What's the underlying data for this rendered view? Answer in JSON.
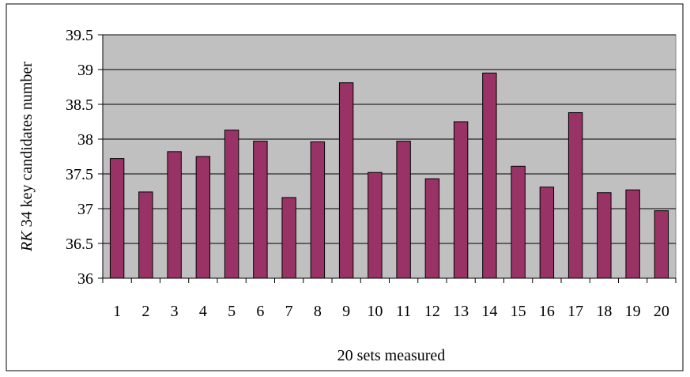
{
  "chart_data": {
    "type": "bar",
    "categories": [
      "1",
      "2",
      "3",
      "4",
      "5",
      "6",
      "7",
      "8",
      "9",
      "10",
      "11",
      "12",
      "13",
      "14",
      "15",
      "16",
      "17",
      "18",
      "19",
      "20"
    ],
    "values": [
      37.72,
      37.24,
      37.82,
      37.75,
      38.13,
      37.97,
      37.16,
      37.96,
      38.81,
      37.52,
      37.97,
      37.43,
      38.25,
      38.95,
      37.61,
      37.31,
      38.38,
      37.23,
      37.27,
      36.97
    ],
    "xlabel": "20 sets measured",
    "ylabel_prefix": "RK",
    "ylabel_rest": " 34 key candidates number",
    "ylim": [
      36,
      39.5
    ],
    "yticks": [
      "36",
      "36.5",
      "37",
      "37.5",
      "38",
      "38.5",
      "39",
      "39.5"
    ],
    "grid": true,
    "legend": "none",
    "colors": {
      "bar": "#993366",
      "plot_background": "#c0c0c0",
      "gridline": "#000000"
    }
  }
}
